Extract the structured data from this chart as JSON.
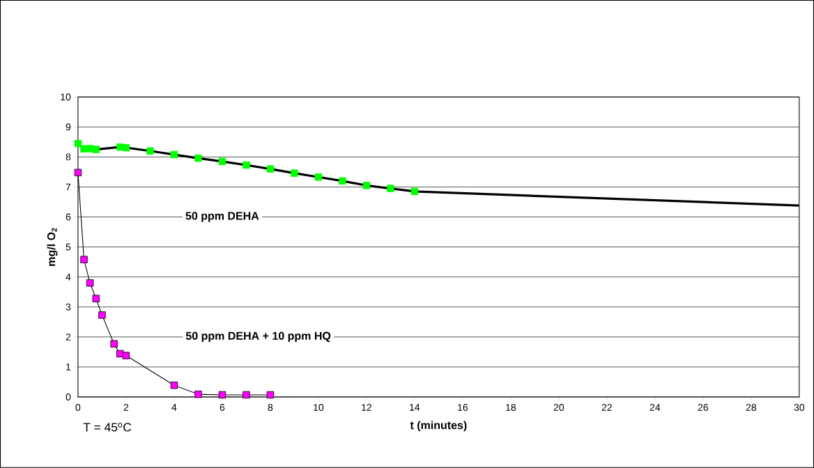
{
  "chart_data": {
    "type": "line",
    "xlabel": "t (minutes)",
    "ylabel": "mg/l O$_{2}$",
    "xlim": [
      0,
      30
    ],
    "xticks": [
      0,
      2,
      4,
      6,
      8,
      10,
      12,
      14,
      16,
      18,
      20,
      22,
      24,
      26,
      28,
      30
    ],
    "ylim": [
      0,
      10
    ],
    "yticks": [
      0,
      1,
      2,
      3,
      4,
      5,
      6,
      7,
      8,
      9,
      10
    ],
    "grid": "y",
    "marker": "square",
    "annotations": [
      "T = 45$^{o}$C",
      "50 ppm DEHA",
      "50 ppm DEHA + 10 ppm HQ"
    ],
    "series": [
      {
        "color": "#00ff00",
        "x": [
          0,
          0.25,
          0.5,
          0.75,
          1.75,
          2,
          3,
          4,
          5,
          6,
          7,
          8,
          9,
          10,
          11,
          12,
          13,
          14
        ],
        "values": [
          8.45,
          8.27,
          8.28,
          8.25,
          8.33,
          8.31,
          8.2,
          8.08,
          7.96,
          7.85,
          7.73,
          7.6,
          7.46,
          7.33,
          7.2,
          7.05,
          6.95,
          6.85
        ]
      },
      {
        "color": "#ff00ff",
        "x": [
          0,
          0.25,
          0.5,
          0.75,
          1,
          1.5,
          1.75,
          2,
          4,
          5,
          6,
          7,
          8
        ],
        "values": [
          7.48,
          4.58,
          3.8,
          3.28,
          2.73,
          1.77,
          1.44,
          1.38,
          0.39,
          0.09,
          0.07,
          0.07,
          0.07
        ]
      },
      {
        "color": "#000000",
        "marker": "none",
        "x": [
          14,
          30
        ],
        "values": [
          6.85,
          6.38
        ]
      }
    ]
  }
}
